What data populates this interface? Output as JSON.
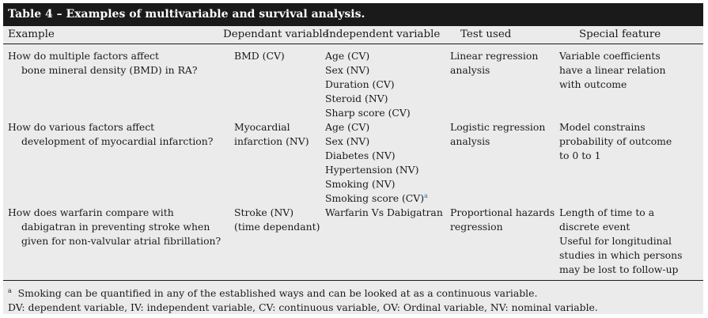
{
  "table": {
    "title": "Table 4 – Examples of multivariable and survival analysis.",
    "headers": {
      "example": "Example",
      "dependent": "Dependant variable",
      "independent": "Independent variable",
      "test": "Test used",
      "special": "Special feature"
    },
    "rows": [
      {
        "example": [
          "How do multiple factors affect",
          "bone mineral density (BMD) in RA?"
        ],
        "dependent": [
          "BMD (CV)"
        ],
        "independent": [
          "Age (CV)",
          "Sex (NV)",
          "Duration (CV)",
          "Steroid (NV)",
          "Sharp score (CV)"
        ],
        "test": [
          "Linear regression",
          "analysis"
        ],
        "special": [
          "Variable coefficients",
          "have a linear relation",
          "with outcome"
        ]
      },
      {
        "example": [
          "How do various factors affect",
          "development of myocardial infarction?"
        ],
        "dependent": [
          "Myocardial",
          "infarction (NV)"
        ],
        "independent": [
          "Age (CV)",
          "Sex (NV)",
          "Diabetes (NV)",
          "Hypertension (NV)",
          "Smoking (NV)",
          "Smoking score (CV)"
        ],
        "independent_footnote_mark": "a",
        "test": [
          "Logistic regression",
          "analysis"
        ],
        "special": [
          "Model constrains",
          "probability of outcome",
          "to 0 to 1"
        ]
      },
      {
        "example": [
          "How does warfarin compare with",
          "dabigatran in preventing stroke when",
          "given for non-valvular atrial fibrillation?"
        ],
        "dependent": [
          "Stroke (NV)",
          "(time dependant)"
        ],
        "independent": [
          "Warfarin Vs Dabigatran"
        ],
        "test": [
          "Proportional hazards",
          "regression"
        ],
        "special": [
          "Length of time to a",
          "discrete event",
          "Useful for longitudinal",
          "studies in which persons",
          "may be lost to follow-up"
        ]
      }
    ],
    "footnote_mark": "a",
    "footnote": "Smoking can be quantified in any of the established ways and can be looked at as a continuous variable.",
    "abbreviations": "DV: dependent variable, IV: independent variable, CV: continuous variable, OV: Ordinal variable, NV: nominal variable."
  }
}
